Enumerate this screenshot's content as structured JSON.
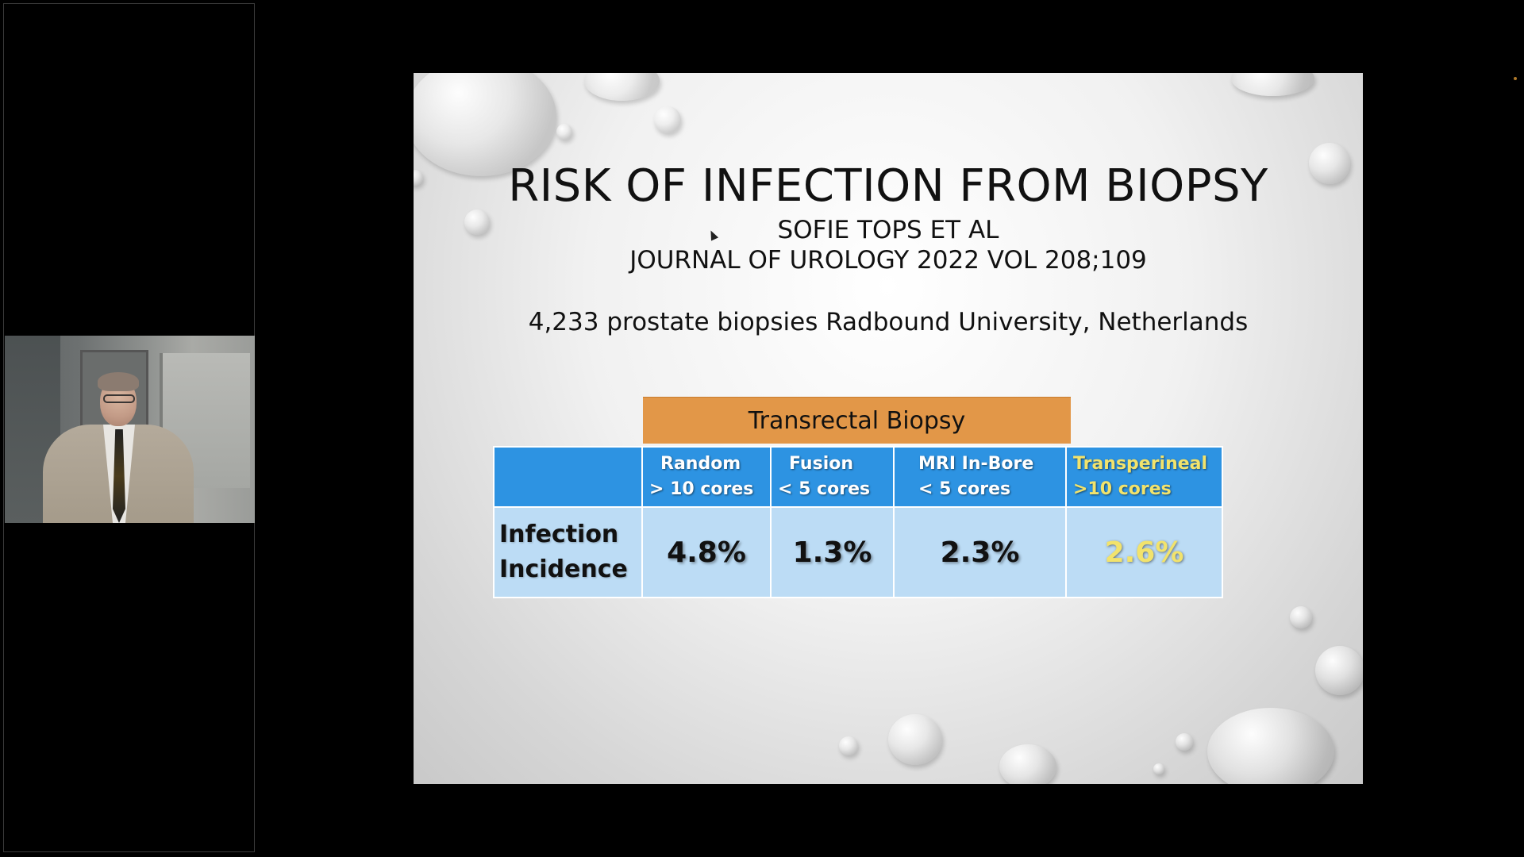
{
  "participant": {
    "video_label": "presenter video"
  },
  "slide": {
    "title": "RISK OF INFECTION  FROM BIOPSY",
    "authors": "SOFIE TOPS ET AL",
    "citation": "JOURNAL OF UROLOGY 2022 VOL 208;109",
    "study_info": "4,233 prostate biopsies Radbound University, Netherlands",
    "table": {
      "group_header": "Transrectal Biopsy",
      "columns": [
        {
          "line1": "Random",
          "line2": "> 10 cores"
        },
        {
          "line1": "Fusion",
          "line2": "< 5 cores"
        },
        {
          "line1": "MRI In-Bore",
          "line2": "< 5 cores"
        },
        {
          "line1": "Transperineal",
          "line2": ">10 cores"
        }
      ],
      "row_label_line1": "Infection",
      "row_label_line2": "Incidence",
      "values": [
        "4.8%",
        "1.3%",
        "2.3%",
        "2.6%"
      ]
    }
  },
  "colors": {
    "orange_header": "#e29748",
    "blue_header": "#2d93e2",
    "light_blue_cell": "#bcdcf5",
    "highlight_yellow": "#f2e36c"
  }
}
